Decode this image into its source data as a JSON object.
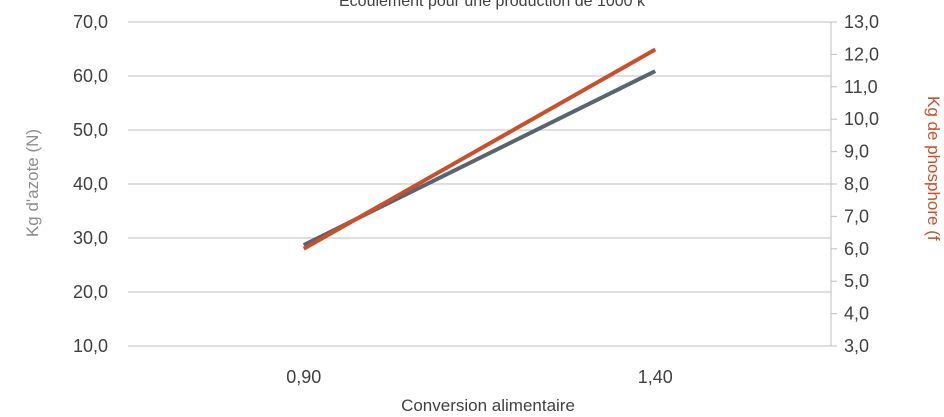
{
  "chart_data": {
    "type": "line",
    "title": "Écoulement pour une production de 1000 k",
    "xlabel": "Conversion alimentaire",
    "ylabel": "Kg d'azote (N)",
    "y2label": "Kg de phosphore (f",
    "categories": [
      "0,90",
      "1,40"
    ],
    "x_range": [
      0.65,
      1.65
    ],
    "ylim": [
      10,
      70
    ],
    "y_ticks": [
      "10,0",
      "20,0",
      "30,0",
      "40,0",
      "50,0",
      "60,0",
      "70,0"
    ],
    "y2lim": [
      3,
      13
    ],
    "y2_ticks": [
      "3,0",
      "4,0",
      "5,0",
      "6,0",
      "7,0",
      "8,0",
      "9,0",
      "10,0",
      "11,0",
      "12,0",
      "13,0"
    ],
    "grid": true,
    "series": [
      {
        "axis": "left",
        "color": "#5a6470",
        "x": [
          0.9,
          1.4
        ],
        "values": [
          28.7,
          60.9
        ]
      },
      {
        "axis": "right",
        "color": "#c9502b",
        "x": [
          0.9,
          1.4
        ],
        "values": [
          6.0,
          12.15
        ]
      }
    ]
  }
}
